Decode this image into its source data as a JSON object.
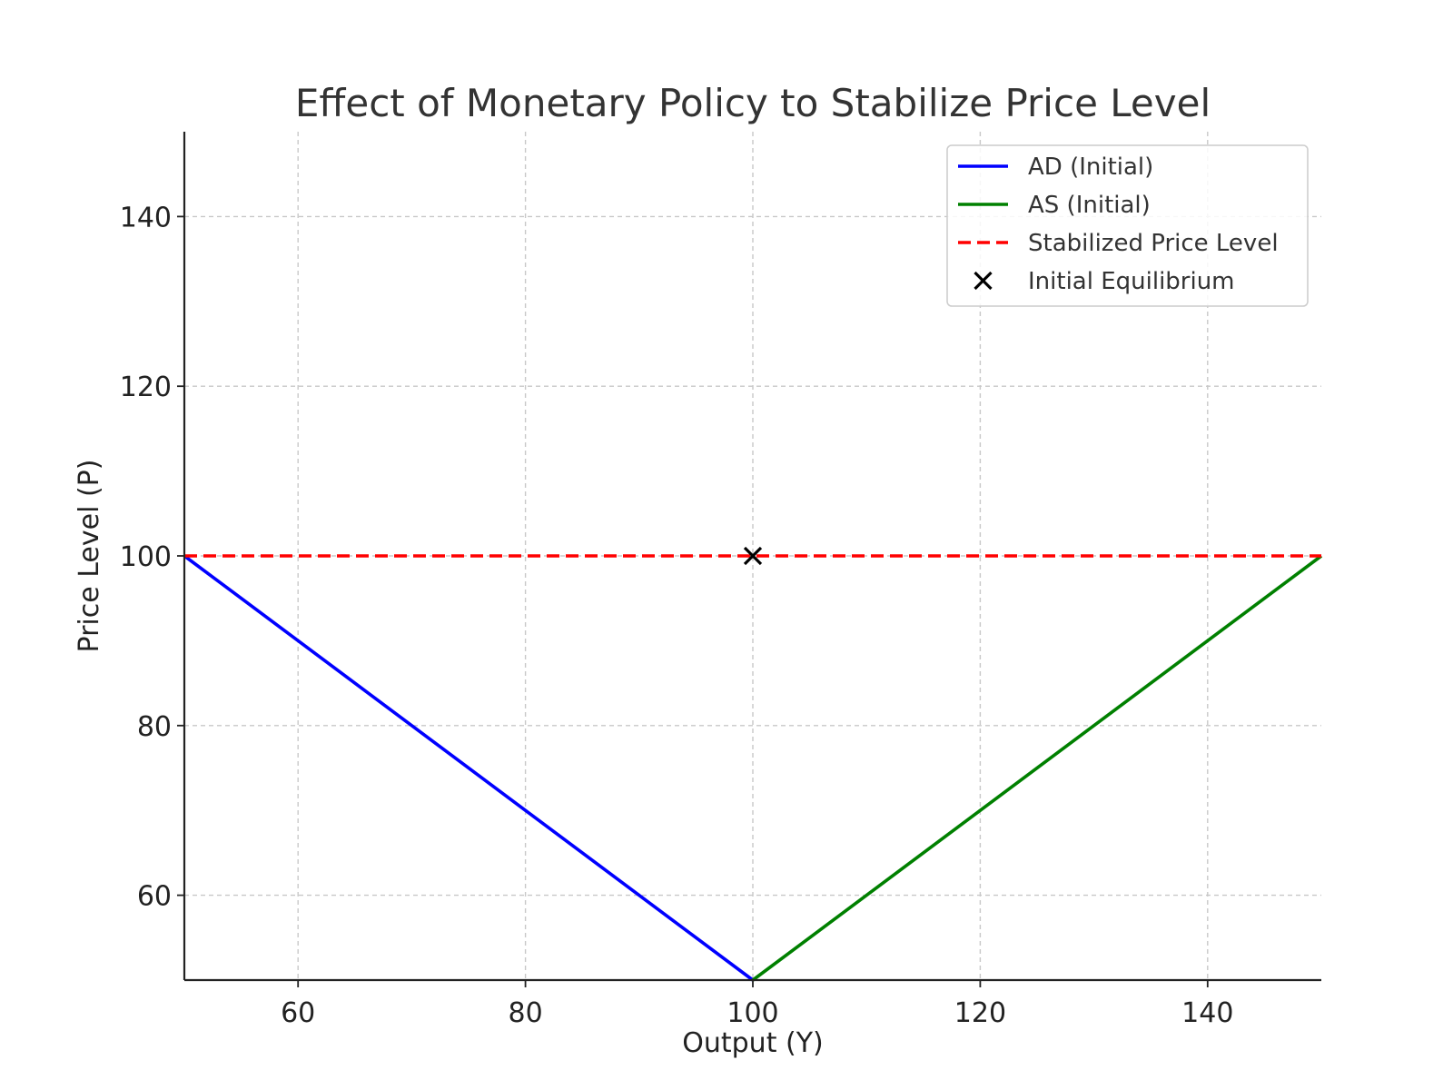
{
  "chart_data": {
    "type": "line",
    "title": "Effect of Monetary Policy to Stabilize Price Level",
    "xlabel": "Output (Y)",
    "ylabel": "Price Level (P)",
    "xlim": [
      50,
      150
    ],
    "ylim": [
      50,
      150
    ],
    "xticks": [
      60,
      80,
      100,
      120,
      140
    ],
    "yticks": [
      60,
      80,
      100,
      120,
      140
    ],
    "grid": true,
    "legend_position": "top-right",
    "series": [
      {
        "name": "AD (Initial)",
        "kind": "line",
        "color": "#0000ff",
        "style": "solid",
        "x": [
          50,
          100
        ],
        "y": [
          100,
          50
        ]
      },
      {
        "name": "AS (Initial)",
        "kind": "line",
        "color": "#008000",
        "style": "solid",
        "x": [
          100,
          150
        ],
        "y": [
          50,
          100
        ]
      },
      {
        "name": "Stabilized Price Level",
        "kind": "line",
        "color": "#ff0000",
        "style": "dashed",
        "x": [
          50,
          150
        ],
        "y": [
          100,
          100
        ]
      },
      {
        "name": "Initial Equilibrium",
        "kind": "marker",
        "marker": "x",
        "color": "#000000",
        "x": [
          100
        ],
        "y": [
          100
        ]
      }
    ]
  }
}
